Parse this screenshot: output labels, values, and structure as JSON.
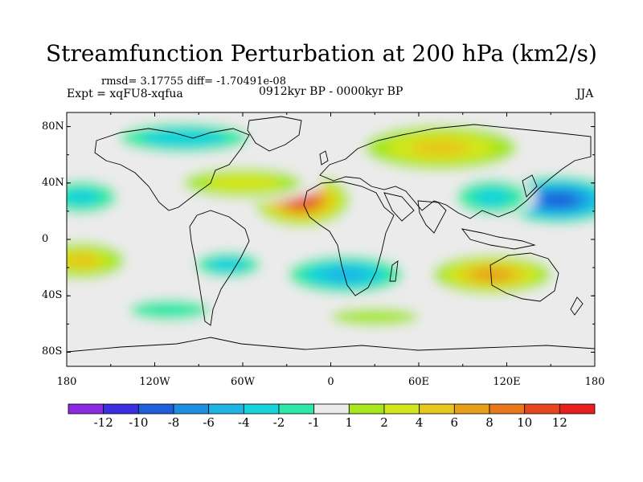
{
  "title": "Streamfunction Perturbation at 200 hPa (km2/s)",
  "stats_text": "rmsd= 3.17755 diff= -1.70491e-08",
  "experiment_text": "Expt = xqFU8-xqfua",
  "period_text": "0912kyr BP - 0000kyr BP",
  "season_text": "JJA",
  "lat_ticks": [
    "80N",
    "40N",
    "0",
    "40S",
    "80S"
  ],
  "lon_ticks": [
    "180",
    "120W",
    "60W",
    "0",
    "60E",
    "120E",
    "180"
  ],
  "colorbar": {
    "labels": [
      "-12",
      "-10",
      "-8",
      "-6",
      "-4",
      "-2",
      "-1",
      "1",
      "2",
      "4",
      "6",
      "8",
      "10",
      "12"
    ],
    "colors": [
      "#8a2be2",
      "#3b2ee0",
      "#1e5fdc",
      "#1e8fe0",
      "#1eb5e6",
      "#18d2dc",
      "#2ee8a8",
      "#ebebeb",
      "#a8e61e",
      "#d2e61e",
      "#e6c81e",
      "#e6a01e",
      "#e6781e",
      "#e6461e",
      "#e61e1e"
    ]
  },
  "map_background": "#ebebeb",
  "anomalies": [
    {
      "name": "north-africa-high",
      "lon": -20,
      "lat": 28,
      "rx": 35,
      "ry": 20,
      "value": 11
    },
    {
      "name": "north-atlantic-high",
      "lon": -60,
      "lat": 40,
      "rx": 55,
      "ry": 14,
      "value": 3
    },
    {
      "name": "siberia-high",
      "lon": 75,
      "lat": 65,
      "rx": 60,
      "ry": 18,
      "value": 6
    },
    {
      "name": "west-pacific-low",
      "lon": 155,
      "lat": 28,
      "rx": 45,
      "ry": 18,
      "value": -10
    },
    {
      "name": "east-asia-low",
      "lon": 110,
      "lat": 30,
      "rx": 30,
      "ry": 15,
      "value": -4
    },
    {
      "name": "canada-low",
      "lon": -100,
      "lat": 72,
      "rx": 60,
      "ry": 14,
      "value": -3
    },
    {
      "name": "east-pacific-low",
      "lon": -170,
      "lat": 30,
      "rx": 30,
      "ry": 14,
      "value": -4
    },
    {
      "name": "south-atlantic-low",
      "lon": 10,
      "lat": -25,
      "rx": 45,
      "ry": 15,
      "value": -6
    },
    {
      "name": "south-america-low",
      "lon": -70,
      "lat": -18,
      "rx": 30,
      "ry": 12,
      "value": -3
    },
    {
      "name": "southern-pacific-low",
      "lon": -110,
      "lat": -50,
      "rx": 45,
      "ry": 12,
      "value": -2
    },
    {
      "name": "australia-high",
      "lon": 110,
      "lat": -25,
      "rx": 45,
      "ry": 15,
      "value": 8
    },
    {
      "name": "south-pacific-high",
      "lon": -170,
      "lat": -15,
      "rx": 35,
      "ry": 15,
      "value": 5
    },
    {
      "name": "southern-ocean-high",
      "lon": 30,
      "lat": -55,
      "rx": 50,
      "ry": 10,
      "value": 2
    }
  ]
}
